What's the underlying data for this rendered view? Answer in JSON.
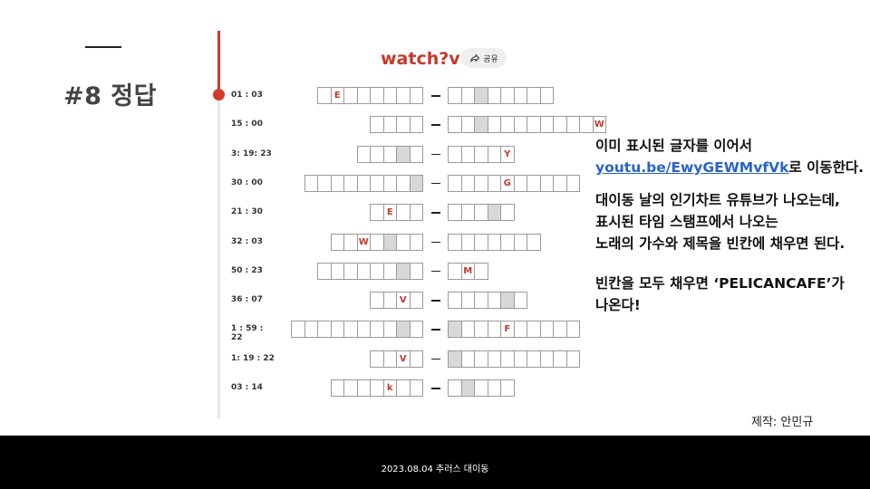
{
  "slide": {
    "title": "#8 정답",
    "credit": "제작: 안민규",
    "footer": "2023.08.04 추러스 대이동"
  },
  "video": {
    "title": "watch?v=",
    "share_label": "공유"
  },
  "puzzle": {
    "rows": [
      {
        "time": "01 : 03",
        "left": [
          "",
          "E",
          "",
          "",
          "",
          "",
          "",
          ""
        ],
        "left_gray": [],
        "right": [
          "",
          "",
          "",
          "",
          "",
          "",
          "",
          ""
        ],
        "right_gray": [
          2
        ]
      },
      {
        "time": "15 : 00",
        "left": [
          "",
          "",
          "",
          ""
        ],
        "left_gray": [],
        "right": [
          "",
          "",
          "",
          "",
          "",
          "",
          "",
          "",
          "",
          "",
          "",
          "W"
        ],
        "right_gray": [
          2
        ]
      },
      {
        "time": "3: 19: 23",
        "left": [
          "",
          "",
          "",
          "",
          ""
        ],
        "left_gray": [
          3
        ],
        "right": [
          "",
          "",
          "",
          "",
          "Y"
        ],
        "right_gray": []
      },
      {
        "time": "30 : 00",
        "left": [
          "",
          "",
          "",
          "",
          "",
          "",
          "",
          "",
          ""
        ],
        "left_gray": [
          8
        ],
        "right": [
          "",
          "",
          "",
          "",
          "G",
          "",
          "",
          "",
          "",
          ""
        ],
        "right_gray": []
      },
      {
        "time": "21 : 30",
        "left": [
          "",
          "E",
          "",
          ""
        ],
        "left_gray": [],
        "right": [
          "",
          "",
          "",
          "",
          ""
        ],
        "right_gray": [
          3
        ]
      },
      {
        "time": "32 : 03",
        "left": [
          "",
          "",
          "W",
          "",
          "",
          "",
          ""
        ],
        "left_gray": [
          4
        ],
        "right": [
          "",
          "",
          "",
          "",
          "",
          "",
          ""
        ],
        "right_gray": []
      },
      {
        "time": "50 : 23",
        "left": [
          "",
          "",
          "",
          "",
          "",
          "",
          "",
          ""
        ],
        "left_gray": [
          6
        ],
        "right": [
          "",
          "M",
          ""
        ],
        "right_gray": []
      },
      {
        "time": "36 : 07",
        "left": [
          "",
          "",
          "V",
          ""
        ],
        "left_gray": [],
        "right": [
          "",
          "",
          "",
          "",
          "",
          ""
        ],
        "right_gray": [
          4
        ]
      },
      {
        "time": "1 : 59 : 22",
        "left": [
          "",
          "",
          "",
          "",
          "",
          "",
          "",
          "",
          "",
          ""
        ],
        "left_gray": [
          8
        ],
        "right": [
          "",
          "",
          "",
          "",
          "F",
          "",
          "",
          "",
          "",
          ""
        ],
        "right_gray": [
          0
        ]
      },
      {
        "time": "1: 19 : 22",
        "left": [
          "",
          "",
          "V",
          ""
        ],
        "left_gray": [],
        "right": [
          "",
          "",
          "",
          "",
          "",
          "",
          "",
          "",
          "",
          ""
        ],
        "right_gray": [
          0
        ]
      },
      {
        "time": "03 : 14",
        "left": [
          "",
          "",
          "",
          "",
          "k",
          "",
          ""
        ],
        "left_gray": [],
        "right": [
          "",
          "",
          "",
          "",
          ""
        ],
        "right_gray": [
          1
        ]
      }
    ]
  },
  "instructions": {
    "line1": "이미 표시된 글자를 이어서",
    "link": "youtu.be/EwyGEWMvfVk",
    "line2_suffix": "로 이동한다.",
    "line3": "대이동 날의 인기차트 유튜브가 나오는데,",
    "line4": "표시된 타임 스탬프에서 나오는",
    "line5": "노래의 가수와 제목을 빈칸에 채우면 된다.",
    "line6": "빈칸을 모두 채우면 ‘PELICANCAFE’가",
    "line7": "나온다!"
  }
}
